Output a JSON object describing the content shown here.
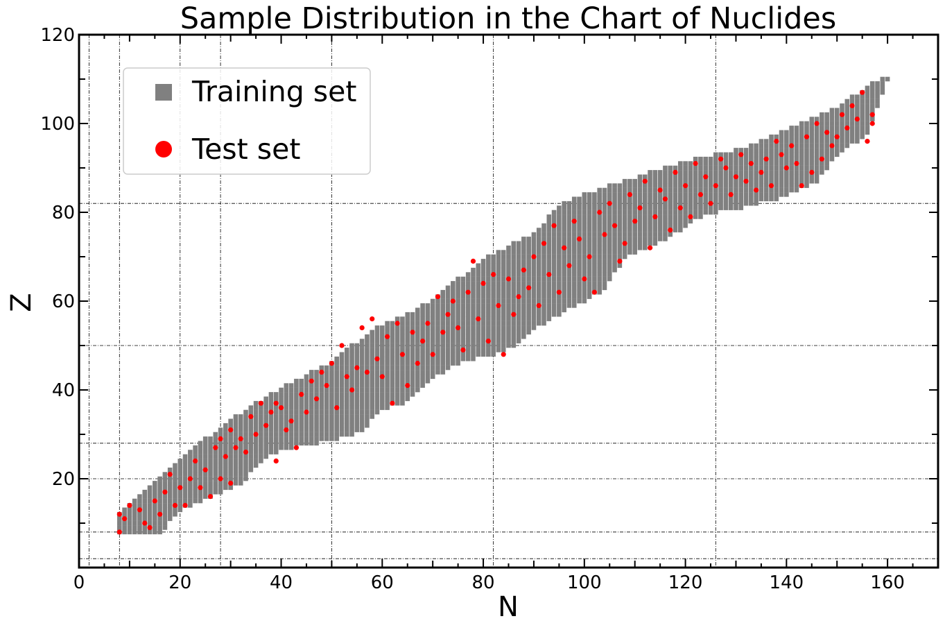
{
  "chart_data": {
    "type": "scatter",
    "title": "Sample Distribution in the Chart of Nuclides",
    "xlabel": "N",
    "ylabel": "Z",
    "xlim": [
      0,
      170
    ],
    "ylim": [
      0,
      120
    ],
    "xticks": [
      0,
      20,
      40,
      60,
      80,
      100,
      120,
      140,
      160
    ],
    "yticks": [
      20,
      40,
      60,
      80,
      100,
      120
    ],
    "magic_numbers": [
      2,
      8,
      20,
      28,
      50,
      82,
      126
    ],
    "magic_numbers_z": [
      2,
      8,
      20,
      28,
      50,
      82
    ],
    "legend_position": "upper-left",
    "series": [
      {
        "name": "Training set",
        "marker": "square",
        "color": "#808080",
        "region": {
          "type": "band",
          "upper": [
            [
              8,
              12
            ],
            [
              20,
              24
            ],
            [
              30,
              33
            ],
            [
              40,
              40
            ],
            [
              50,
              46
            ],
            [
              58,
              53
            ],
            [
              64,
              56
            ],
            [
              70,
              60
            ],
            [
              80,
              69
            ],
            [
              90,
              75
            ],
            [
              96,
              82
            ],
            [
              106,
              86
            ],
            [
              120,
              91
            ],
            [
              128,
              93
            ],
            [
              134,
              95
            ],
            [
              140,
              98
            ],
            [
              150,
              103
            ],
            [
              156,
              108
            ],
            [
              160,
              110
            ]
          ],
          "lower": [
            [
              8,
              8
            ],
            [
              16,
              8
            ],
            [
              20,
              13
            ],
            [
              24,
              15
            ],
            [
              28,
              17
            ],
            [
              32,
              19
            ],
            [
              36,
              24
            ],
            [
              40,
              27
            ],
            [
              50,
              29
            ],
            [
              56,
              31
            ],
            [
              60,
              36
            ],
            [
              64,
              37
            ],
            [
              70,
              43
            ],
            [
              76,
              47
            ],
            [
              82,
              48
            ],
            [
              86,
              50
            ],
            [
              90,
              54
            ],
            [
              96,
              58
            ],
            [
              100,
              60
            ],
            [
              104,
              63
            ],
            [
              108,
              70
            ],
            [
              116,
              74
            ],
            [
              124,
              80
            ],
            [
              130,
              81
            ],
            [
              140,
              84
            ],
            [
              146,
              87
            ],
            [
              150,
              93
            ],
            [
              156,
              98
            ],
            [
              160,
              110
            ]
          ]
        }
      },
      {
        "name": "Test set",
        "marker": "circle",
        "color": "#ff0000",
        "points": [
          [
            8,
            8
          ],
          [
            8,
            12
          ],
          [
            9,
            11
          ],
          [
            10,
            14
          ],
          [
            12,
            13
          ],
          [
            13,
            10
          ],
          [
            14,
            9
          ],
          [
            15,
            15
          ],
          [
            16,
            12
          ],
          [
            17,
            17
          ],
          [
            18,
            21
          ],
          [
            19,
            14
          ],
          [
            20,
            18
          ],
          [
            21,
            14
          ],
          [
            22,
            20
          ],
          [
            23,
            24
          ],
          [
            24,
            18
          ],
          [
            25,
            22
          ],
          [
            26,
            16
          ],
          [
            27,
            27
          ],
          [
            28,
            20
          ],
          [
            28,
            29
          ],
          [
            29,
            25
          ],
          [
            30,
            19
          ],
          [
            30,
            31
          ],
          [
            31,
            27
          ],
          [
            32,
            29
          ],
          [
            33,
            26
          ],
          [
            34,
            34
          ],
          [
            35,
            30
          ],
          [
            36,
            37
          ],
          [
            37,
            32
          ],
          [
            38,
            35
          ],
          [
            39,
            24
          ],
          [
            39,
            37
          ],
          [
            40,
            36
          ],
          [
            41,
            31
          ],
          [
            42,
            33
          ],
          [
            43,
            27
          ],
          [
            44,
            39
          ],
          [
            45,
            35
          ],
          [
            46,
            42
          ],
          [
            47,
            38
          ],
          [
            48,
            44
          ],
          [
            49,
            41
          ],
          [
            50,
            46
          ],
          [
            51,
            36
          ],
          [
            52,
            50
          ],
          [
            53,
            43
          ],
          [
            54,
            40
          ],
          [
            55,
            45
          ],
          [
            56,
            54
          ],
          [
            57,
            44
          ],
          [
            58,
            56
          ],
          [
            59,
            47
          ],
          [
            60,
            43
          ],
          [
            61,
            52
          ],
          [
            62,
            37
          ],
          [
            63,
            55
          ],
          [
            64,
            48
          ],
          [
            65,
            41
          ],
          [
            66,
            53
          ],
          [
            67,
            46
          ],
          [
            68,
            51
          ],
          [
            69,
            55
          ],
          [
            70,
            48
          ],
          [
            71,
            61
          ],
          [
            72,
            53
          ],
          [
            73,
            57
          ],
          [
            74,
            60
          ],
          [
            75,
            54
          ],
          [
            76,
            49
          ],
          [
            77,
            62
          ],
          [
            78,
            69
          ],
          [
            79,
            56
          ],
          [
            80,
            64
          ],
          [
            81,
            51
          ],
          [
            82,
            66
          ],
          [
            83,
            59
          ],
          [
            84,
            48
          ],
          [
            85,
            65
          ],
          [
            86,
            57
          ],
          [
            87,
            61
          ],
          [
            88,
            67
          ],
          [
            89,
            63
          ],
          [
            90,
            70
          ],
          [
            91,
            59
          ],
          [
            92,
            73
          ],
          [
            93,
            66
          ],
          [
            94,
            77
          ],
          [
            95,
            62
          ],
          [
            96,
            72
          ],
          [
            97,
            68
          ],
          [
            98,
            78
          ],
          [
            99,
            74
          ],
          [
            100,
            65
          ],
          [
            101,
            70
          ],
          [
            102,
            62
          ],
          [
            103,
            80
          ],
          [
            104,
            75
          ],
          [
            105,
            82
          ],
          [
            106,
            77
          ],
          [
            107,
            69
          ],
          [
            108,
            73
          ],
          [
            109,
            84
          ],
          [
            110,
            78
          ],
          [
            111,
            81
          ],
          [
            112,
            87
          ],
          [
            113,
            72
          ],
          [
            114,
            79
          ],
          [
            115,
            85
          ],
          [
            116,
            83
          ],
          [
            117,
            76
          ],
          [
            118,
            89
          ],
          [
            119,
            81
          ],
          [
            120,
            86
          ],
          [
            121,
            79
          ],
          [
            122,
            91
          ],
          [
            123,
            84
          ],
          [
            124,
            88
          ],
          [
            125,
            82
          ],
          [
            126,
            86
          ],
          [
            127,
            92
          ],
          [
            128,
            90
          ],
          [
            129,
            84
          ],
          [
            130,
            88
          ],
          [
            131,
            93
          ],
          [
            132,
            87
          ],
          [
            133,
            91
          ],
          [
            134,
            85
          ],
          [
            135,
            89
          ],
          [
            136,
            92
          ],
          [
            137,
            86
          ],
          [
            138,
            96
          ],
          [
            139,
            93
          ],
          [
            140,
            90
          ],
          [
            141,
            95
          ],
          [
            142,
            91
          ],
          [
            143,
            86
          ],
          [
            144,
            97
          ],
          [
            145,
            89
          ],
          [
            146,
            100
          ],
          [
            147,
            92
          ],
          [
            148,
            98
          ],
          [
            149,
            95
          ],
          [
            150,
            97
          ],
          [
            151,
            102
          ],
          [
            152,
            99
          ],
          [
            153,
            104
          ],
          [
            154,
            101
          ],
          [
            155,
            107
          ],
          [
            156,
            96
          ],
          [
            157,
            100
          ],
          [
            157,
            102
          ]
        ]
      }
    ]
  }
}
